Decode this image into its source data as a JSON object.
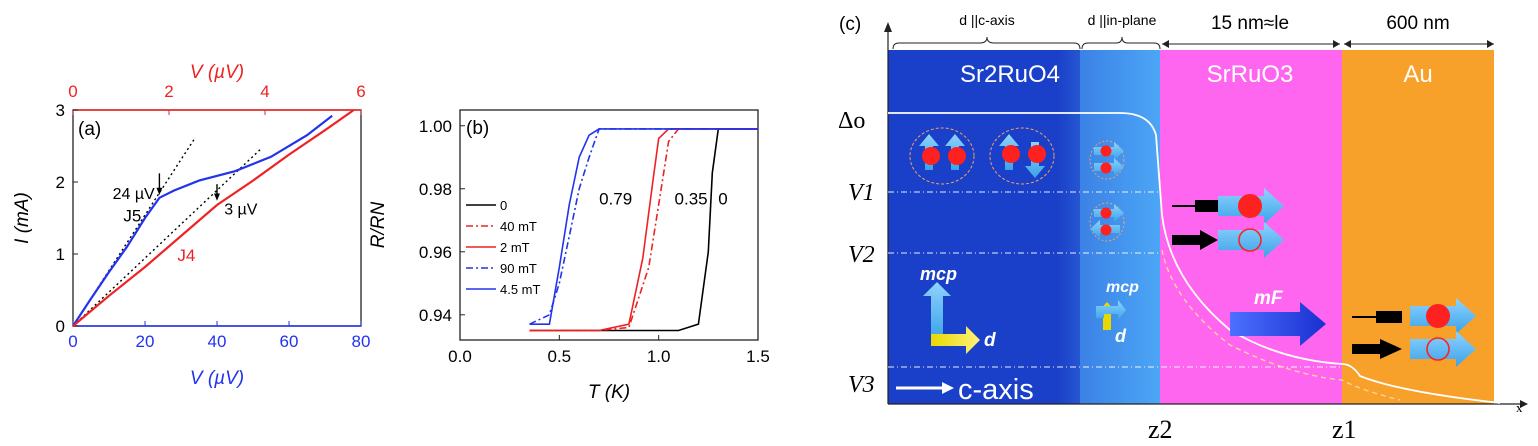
{
  "chart_data": [
    {
      "panel_label": "(a)",
      "type": "line",
      "xlabel": "V (µV)",
      "x2label": "V (µV)",
      "ylabel": "I (mA)",
      "xlim": [
        0,
        80
      ],
      "x2lim": [
        0,
        6
      ],
      "ylim": [
        0,
        3
      ],
      "xticks": [
        "0",
        "20",
        "40",
        "60",
        "80"
      ],
      "x2ticks": [
        "0",
        "2",
        "4",
        "6"
      ],
      "yticks": [
        "0",
        "1",
        "2",
        "3"
      ],
      "colors": {
        "J5": "#2233ee",
        "J4": "#ee2222"
      },
      "series": [
        {
          "name": "J5",
          "axis": "bottom",
          "x": [
            0,
            5,
            10,
            15,
            20,
            24,
            28,
            35,
            45,
            55,
            65,
            72
          ],
          "y": [
            0,
            0.38,
            0.75,
            1.1,
            1.5,
            1.78,
            1.88,
            2.02,
            2.15,
            2.35,
            2.65,
            2.92
          ]
        },
        {
          "name": "J4",
          "axis": "top",
          "x": [
            0,
            0.75,
            1.5,
            2.25,
            3.0,
            3.75,
            4.5,
            5.25,
            5.85
          ],
          "y": [
            0,
            0.42,
            0.82,
            1.25,
            1.68,
            2.02,
            2.38,
            2.72,
            3.0
          ]
        }
      ],
      "annotations": [
        {
          "text": "24 µV",
          "x": 24,
          "y": 1.78
        },
        {
          "text": "3 µV",
          "x": 40,
          "y": 1.8
        },
        {
          "text": "J5",
          "x": 14,
          "y": 1.45
        },
        {
          "text": "J4",
          "x": 29,
          "y": 0.9
        }
      ]
    },
    {
      "panel_label": "(b)",
      "type": "line",
      "xlabel": "T (K)",
      "ylabel": "R/RN",
      "xlim": [
        0,
        1.5
      ],
      "ylim": [
        0.932,
        1.005
      ],
      "xticks": [
        "0.0",
        "0.5",
        "1.0",
        "1.5"
      ],
      "yticks": [
        "0.94",
        "0.96",
        "0.98",
        "1.00"
      ],
      "legend": "left",
      "series": [
        {
          "name": "0",
          "color": "#000000",
          "dash": "solid",
          "x": [
            0.35,
            0.8,
            1.1,
            1.2,
            1.25,
            1.27,
            1.3,
            1.5
          ],
          "y": [
            0.935,
            0.935,
            0.935,
            0.937,
            0.96,
            0.985,
            0.999,
            0.999
          ]
        },
        {
          "name": "40 mT",
          "color": "#ee2222",
          "dash": "dashdot",
          "x": [
            0.35,
            0.7,
            0.85,
            0.95,
            1.0,
            1.05,
            1.1,
            1.5
          ],
          "y": [
            0.935,
            0.935,
            0.936,
            0.955,
            0.975,
            0.995,
            0.999,
            0.999
          ]
        },
        {
          "name": "2 mT",
          "color": "#ee2222",
          "dash": "solid",
          "x": [
            0.35,
            0.7,
            0.85,
            0.92,
            0.97,
            1.0,
            1.05,
            1.5
          ],
          "y": [
            0.935,
            0.935,
            0.937,
            0.958,
            0.982,
            0.996,
            0.999,
            0.999
          ]
        },
        {
          "name": "90 mT",
          "color": "#2233ee",
          "dash": "dashdot",
          "x": [
            0.35,
            0.45,
            0.5,
            0.55,
            0.6,
            0.65,
            0.7,
            1.5
          ],
          "y": [
            0.937,
            0.94,
            0.95,
            0.965,
            0.98,
            0.99,
            0.999,
            0.999
          ]
        },
        {
          "name": "4.5 mT",
          "color": "#2233ee",
          "dash": "solid",
          "x": [
            0.35,
            0.45,
            0.5,
            0.55,
            0.6,
            0.65,
            0.7,
            1.5
          ],
          "y": [
            0.937,
            0.937,
            0.955,
            0.975,
            0.99,
            0.997,
            0.999,
            0.999
          ]
        }
      ],
      "annotations": [
        {
          "text": "0.79",
          "x": 0.7,
          "y": 0.975
        },
        {
          "text": "0.35",
          "x": 1.08,
          "y": 0.975
        },
        {
          "text": "0",
          "x": 1.3,
          "y": 0.975
        }
      ]
    }
  ],
  "panel_c": {
    "label": "(c)",
    "top_labels": {
      "c_axis": "d ||c-axis",
      "in_plane": "d ||in-plane",
      "le": "15 nm≈le",
      "au_thick": "600 nm"
    },
    "regions": {
      "sr2ruo4": "Sr2RuO4",
      "srruo3": "SrRuO3",
      "au": "Au"
    },
    "colors": {
      "sr2ruo4": "#1a3fc8",
      "inplane": "#4da6f5",
      "srruo3": "#ff66f0",
      "au": "#f7a12b"
    },
    "energy_levels": [
      "Δo",
      "V1",
      "V2",
      "V3"
    ],
    "x_marks": [
      "z2",
      "z1",
      "x"
    ],
    "vectors": {
      "m_cp": "mcp",
      "d": "d",
      "m_F": "mF"
    },
    "c_axis_label": "c-axis"
  }
}
